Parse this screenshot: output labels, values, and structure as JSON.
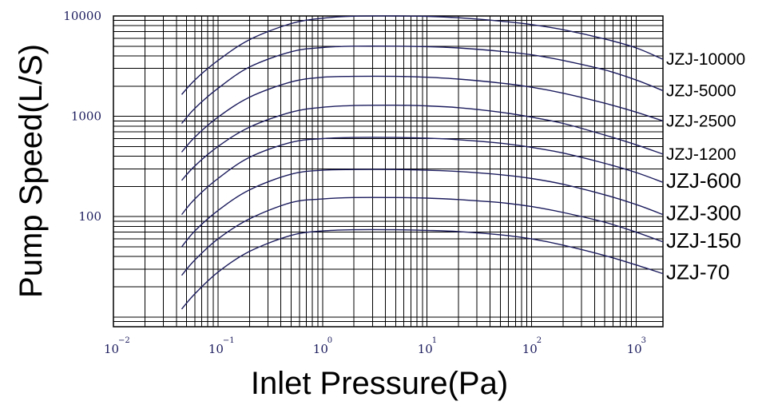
{
  "chart_data": {
    "type": "line",
    "title": "",
    "xlabel": "Inlet Pressure(Pa)",
    "ylabel": "Pump Speed(L/S)",
    "xscale": "log",
    "yscale": "log",
    "xlim": [
      0.01,
      1800
    ],
    "ylim": [
      8,
      10000
    ],
    "grid": true,
    "legend": "labels at right end of each curve",
    "tick_color": "#1c1c5e",
    "line_color": "#1c1c5e",
    "x_ticks": [
      {
        "base": "10",
        "exp": "−2",
        "value": 0.01
      },
      {
        "base": "10",
        "exp": "−1",
        "value": 0.1
      },
      {
        "base": "10",
        "exp": "0",
        "value": 1
      },
      {
        "base": "10",
        "exp": "1",
        "value": 10
      },
      {
        "base": "10",
        "exp": "2",
        "value": 100
      },
      {
        "base": "10",
        "exp": "3",
        "value": 1000
      }
    ],
    "y_ticks": [
      {
        "label": "10000",
        "value": 10000
      },
      {
        "label": "1000",
        "value": 1000
      },
      {
        "label": "100",
        "value": 100
      }
    ],
    "x": [
      0.045,
      0.06,
      0.1,
      0.2,
      0.5,
      1,
      2,
      5,
      10,
      20,
      50,
      100,
      200,
      500,
      1000,
      1800
    ],
    "series": [
      {
        "name": "JZJ-10000",
        "label_size": 21,
        "values": [
          1650,
          2300,
          3600,
          5800,
          8400,
          9500,
          9950,
          10000,
          9900,
          9600,
          8900,
          8200,
          7300,
          5900,
          4800,
          3700
        ]
      },
      {
        "name": "JZJ-5000",
        "label_size": 21,
        "values": [
          850,
          1200,
          1900,
          3100,
          4400,
          4850,
          5000,
          5000,
          4950,
          4800,
          4450,
          4100,
          3600,
          2900,
          2300,
          1800
        ]
      },
      {
        "name": "JZJ-2500",
        "label_size": 21,
        "values": [
          440,
          620,
          980,
          1550,
          2200,
          2450,
          2500,
          2500,
          2450,
          2350,
          2150,
          1950,
          1700,
          1350,
          1100,
          900
        ]
      },
      {
        "name": "JZJ-1200",
        "label_size": 21,
        "values": [
          230,
          320,
          500,
          780,
          1100,
          1230,
          1280,
          1290,
          1270,
          1220,
          1100,
          980,
          850,
          650,
          520,
          420
        ]
      },
      {
        "name": "JZJ-600",
        "label_size": 26,
        "values": [
          105,
          150,
          240,
          390,
          550,
          600,
          615,
          615,
          605,
          585,
          540,
          490,
          430,
          340,
          275,
          220
        ]
      },
      {
        "name": "JZJ-300",
        "label_size": 26,
        "values": [
          50,
          72,
          115,
          185,
          265,
          290,
          295,
          295,
          290,
          282,
          262,
          240,
          210,
          165,
          132,
          105
        ]
      },
      {
        "name": "JZJ-150",
        "label_size": 26,
        "values": [
          26,
          37,
          60,
          95,
          138,
          150,
          155,
          155,
          153,
          148,
          138,
          126,
          110,
          88,
          70,
          56
        ]
      },
      {
        "name": "JZJ-70",
        "label_size": 26,
        "values": [
          12,
          17,
          28,
          45,
          65,
          72,
          74,
          74,
          73,
          71,
          66,
          60,
          52,
          41,
          33,
          27
        ]
      }
    ]
  }
}
